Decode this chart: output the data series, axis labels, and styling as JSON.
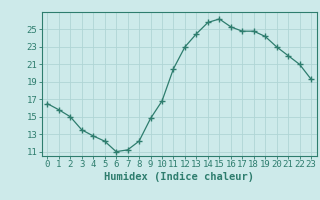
{
  "x": [
    0,
    1,
    2,
    3,
    4,
    5,
    6,
    7,
    8,
    9,
    10,
    11,
    12,
    13,
    14,
    15,
    16,
    17,
    18,
    19,
    20,
    21,
    22,
    23
  ],
  "y": [
    16.5,
    15.8,
    15.0,
    13.5,
    12.8,
    12.2,
    11.0,
    11.2,
    12.2,
    14.8,
    16.8,
    20.5,
    23.0,
    24.5,
    25.8,
    26.2,
    25.3,
    24.8,
    24.8,
    24.2,
    23.0,
    22.0,
    21.0,
    19.3
  ],
  "line_color": "#2e7d6e",
  "marker_color": "#2e7d6e",
  "bg_color": "#cdeaea",
  "grid_color": "#b0d5d5",
  "axis_color": "#2e7d6e",
  "xlabel": "Humidex (Indice chaleur)",
  "ylim": [
    10.5,
    27.0
  ],
  "yticks": [
    11,
    13,
    15,
    17,
    19,
    21,
    23,
    25
  ],
  "xticks": [
    0,
    1,
    2,
    3,
    4,
    5,
    6,
    7,
    8,
    9,
    10,
    11,
    12,
    13,
    14,
    15,
    16,
    17,
    18,
    19,
    20,
    21,
    22,
    23
  ],
  "font_size": 6.5,
  "xlabel_font_size": 7.5
}
